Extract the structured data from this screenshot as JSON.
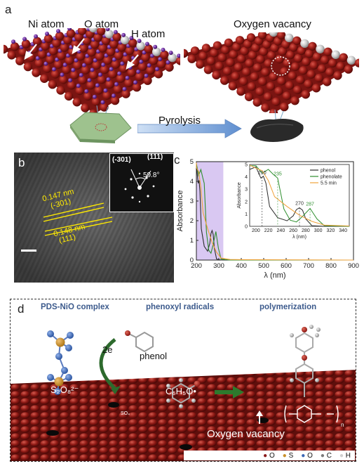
{
  "panel_a": {
    "label": "a",
    "atom_labels": [
      "Ni atom",
      "O atom",
      "H atom"
    ],
    "vacancy_label": "Oxygen vacancy",
    "process_label": "Pyrolysis"
  },
  "panel_b": {
    "label": "b",
    "d1": "0.147 nm",
    "d1_plane": "(-301)",
    "d2": "0.148 nm",
    "d2_plane": "(111)",
    "fft_plane1": "(-301)",
    "fft_plane2": "(111)",
    "fft_angle": "59.8°"
  },
  "chart_data": {
    "type": "line",
    "panel_label": "c",
    "xlabel": "λ (nm)",
    "ylabel": "Absorbance",
    "xlim": [
      200,
      900
    ],
    "ylim": [
      0,
      5
    ],
    "xticks": [
      200,
      300,
      400,
      500,
      600,
      700,
      800,
      900
    ],
    "yticks": [
      0,
      1,
      2,
      3,
      4,
      5
    ],
    "series": [
      {
        "name": "phenol",
        "color": "#2b2b2b",
        "x": [
          190,
          200,
          208,
          212,
          216,
          222,
          235,
          250,
          260,
          265,
          270,
          275,
          280,
          290,
          310,
          350,
          900
        ],
        "y": [
          4.6,
          4.8,
          3.9,
          4.05,
          3.5,
          1.6,
          0.7,
          0.45,
          0.85,
          1.35,
          1.5,
          1.3,
          0.6,
          0.05,
          0.0,
          0.0,
          0.0
        ]
      },
      {
        "name": "phenolate",
        "color": "#2f8f2f",
        "x": [
          190,
          200,
          210,
          220,
          228,
          235,
          245,
          255,
          265,
          275,
          287,
          298,
          310,
          350,
          900
        ],
        "y": [
          4.9,
          4.9,
          4.3,
          4.6,
          4.2,
          3.9,
          1.4,
          0.5,
          0.35,
          0.8,
          1.45,
          0.6,
          0.05,
          0.0,
          0.0
        ]
      },
      {
        "name": "5.5 min",
        "color": "#f0a23a",
        "x": [
          190,
          200,
          210,
          220,
          230,
          250,
          270,
          290,
          310,
          350,
          400,
          900
        ],
        "y": [
          4.95,
          4.7,
          4.5,
          3.7,
          2.4,
          1.6,
          0.9,
          0.4,
          0.1,
          0.03,
          0.02,
          0.0
        ]
      }
    ],
    "inset": {
      "xlabel": "λ (nm)",
      "ylabel": "Absorbance",
      "xlim": [
        190,
        350
      ],
      "ylim": [
        0,
        5
      ],
      "xticks": [
        200,
        220,
        240,
        260,
        280,
        300,
        320,
        340
      ],
      "yticks": [
        0,
        1,
        2,
        3,
        4,
        5
      ],
      "annotations": [
        {
          "text": "210",
          "x": 210,
          "color": "#2b2b2b"
        },
        {
          "text": "235",
          "x": 235,
          "color": "#2f8f2f"
        },
        {
          "text": "270",
          "x": 270,
          "color": "#2b2b2b"
        },
        {
          "text": "287",
          "x": 287,
          "color": "#2f8f2f"
        }
      ],
      "legend": [
        "phenol",
        "phenolate",
        "5.5 min"
      ]
    },
    "highlight_range": [
      200,
      320
    ],
    "highlight_color": "#d9c8f2"
  },
  "panel_d": {
    "label": "d",
    "titles": [
      "PDS-NiO complex",
      "phenoxyl radicals",
      "polymerization"
    ],
    "e_label": "2e",
    "phenol_label": "phenol",
    "s2o8": "S₂O₈²⁻",
    "so4": "SO₄",
    "c6h5o": "C₆H₅O•",
    "vacancy": "Oxygen vacancy",
    "n_label": "n",
    "legend": [
      {
        "symbol": "●",
        "label": "O",
        "color": "#8b1a1a"
      },
      {
        "symbol": "●",
        "label": "S",
        "color": "#c9902a"
      },
      {
        "symbol": "●",
        "label": "O",
        "color": "#3a67b5"
      },
      {
        "symbol": "●",
        "label": "C",
        "color": "#7a7a7a"
      },
      {
        "symbol": "●",
        "label": "H",
        "color": "#e8e8e8"
      }
    ]
  }
}
